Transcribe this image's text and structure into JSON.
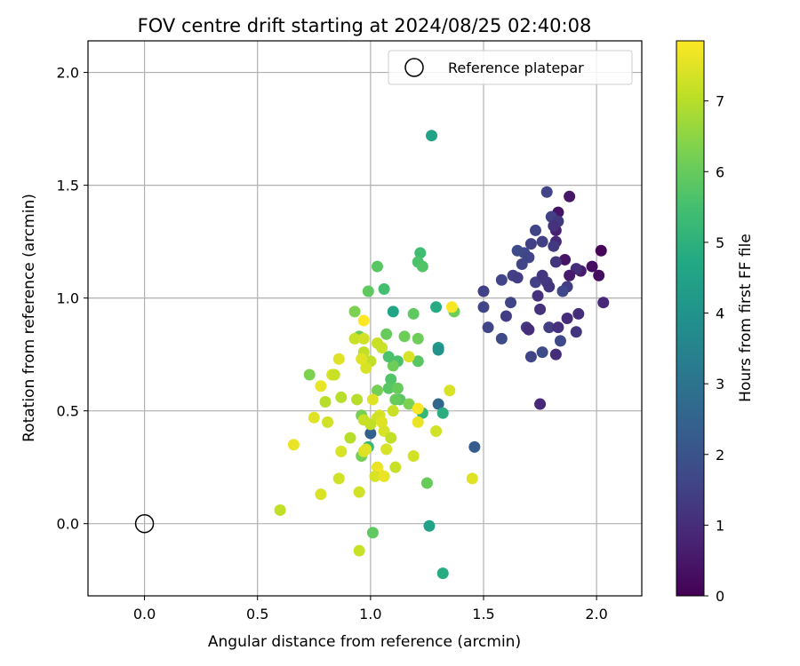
{
  "chart_data": {
    "type": "scatter",
    "title": "FOV centre drift starting at 2024/08/25 02:40:08",
    "xlabel": "Angular distance from reference (arcmin)",
    "ylabel": "Rotation from reference (arcmin)",
    "xlim": [
      -0.25,
      2.2
    ],
    "ylim": [
      -0.32,
      2.14
    ],
    "xticks": [
      "0.0",
      "0.5",
      "1.0",
      "1.5",
      "2.0"
    ],
    "yticks": [
      "0.0",
      "0.5",
      "1.0",
      "1.5",
      "2.0"
    ],
    "grid": true,
    "legend": {
      "position": "top-right",
      "entries": [
        "Reference platepar"
      ]
    },
    "reference_point": {
      "x": 0.0,
      "y": 0.0,
      "label": "Reference platepar"
    },
    "colorbar": {
      "label": "Hours from first FF file",
      "colormap": "viridis",
      "range": [
        0,
        7.85
      ],
      "ticks": [
        "0",
        "1",
        "2",
        "3",
        "4",
        "5",
        "6",
        "7"
      ]
    },
    "points": [
      [
        2.02,
        1.21,
        0.1
      ],
      [
        1.98,
        1.14,
        0.3
      ],
      [
        2.01,
        1.1,
        0.3
      ],
      [
        2.03,
        0.98,
        0.9
      ],
      [
        1.88,
        1.45,
        0.5
      ],
      [
        1.83,
        1.38,
        0.4
      ],
      [
        1.86,
        1.17,
        0.4
      ],
      [
        1.93,
        1.12,
        0.6
      ],
      [
        1.91,
        1.13,
        1.0
      ],
      [
        1.88,
        1.1,
        0.6
      ],
      [
        1.82,
        1.25,
        0.9
      ],
      [
        1.82,
        1.3,
        0.7
      ],
      [
        1.87,
        1.05,
        1.4
      ],
      [
        1.85,
        1.03,
        1.7
      ],
      [
        1.82,
        1.16,
        1.2
      ],
      [
        1.78,
        1.47,
        1.6
      ],
      [
        1.8,
        1.36,
        1.5
      ],
      [
        1.83,
        1.34,
        1.3
      ],
      [
        1.81,
        1.32,
        1.1
      ],
      [
        1.81,
        1.23,
        1.3
      ],
      [
        1.76,
        1.25,
        1.5
      ],
      [
        1.73,
        1.3,
        1.6
      ],
      [
        1.71,
        1.24,
        1.5
      ],
      [
        1.68,
        1.2,
        1.7
      ],
      [
        1.65,
        1.21,
        1.8
      ],
      [
        1.67,
        1.15,
        1.6
      ],
      [
        1.7,
        1.18,
        1.6
      ],
      [
        1.63,
        1.1,
        1.5
      ],
      [
        1.65,
        1.09,
        1.4
      ],
      [
        1.58,
        1.08,
        1.6
      ],
      [
        1.62,
        0.98,
        1.6
      ],
      [
        1.69,
        0.87,
        1.3
      ],
      [
        1.7,
        0.86,
        1.0
      ],
      [
        1.74,
        1.01,
        1.1
      ],
      [
        1.73,
        1.07,
        1.5
      ],
      [
        1.76,
        1.1,
        1.2
      ],
      [
        1.78,
        1.07,
        1.3
      ],
      [
        1.79,
        1.05,
        1.2
      ],
      [
        1.75,
        0.95,
        1.1
      ],
      [
        1.6,
        0.92,
        1.4
      ],
      [
        1.58,
        0.82,
        1.8
      ],
      [
        1.52,
        0.87,
        1.6
      ],
      [
        1.5,
        0.96,
        1.6
      ],
      [
        1.5,
        1.03,
        1.5
      ],
      [
        1.71,
        0.74,
        1.6
      ],
      [
        1.76,
        0.76,
        1.8
      ],
      [
        1.79,
        0.87,
        1.4
      ],
      [
        1.83,
        0.87,
        1.1
      ],
      [
        1.84,
        0.81,
        1.7
      ],
      [
        1.82,
        0.75,
        1.0
      ],
      [
        1.75,
        0.53,
        0.9
      ],
      [
        1.87,
        0.91,
        1.0
      ],
      [
        1.92,
        0.93,
        1.0
      ],
      [
        1.91,
        0.85,
        1.2
      ],
      [
        1.46,
        0.34,
        2.3
      ],
      [
        1.3,
        0.53,
        2.6
      ],
      [
        1.0,
        0.4,
        2.4
      ],
      [
        1.27,
        1.72,
        4.5
      ],
      [
        1.22,
        1.2,
        5.4
      ],
      [
        1.21,
        1.16,
        5.6
      ],
      [
        1.23,
        1.14,
        5.7
      ],
      [
        1.03,
        1.14,
        5.8
      ],
      [
        1.06,
        1.04,
        5.5
      ],
      [
        0.99,
        1.03,
        5.9
      ],
      [
        1.1,
        0.94,
        4.6
      ],
      [
        1.29,
        0.96,
        4.8
      ],
      [
        1.37,
        0.94,
        6.1
      ],
      [
        1.19,
        0.93,
        5.9
      ],
      [
        0.93,
        0.94,
        6.3
      ],
      [
        0.95,
        0.83,
        6.0
      ],
      [
        1.07,
        0.84,
        6.0
      ],
      [
        1.15,
        0.83,
        6.1
      ],
      [
        1.21,
        0.82,
        6.1
      ],
      [
        1.3,
        0.78,
        4.3
      ],
      [
        1.3,
        0.77,
        4.0
      ],
      [
        1.21,
        0.72,
        5.8
      ],
      [
        1.12,
        0.72,
        5.6
      ],
      [
        1.1,
        0.7,
        6.1
      ],
      [
        1.08,
        0.74,
        5.6
      ],
      [
        1.09,
        0.64,
        5.7
      ],
      [
        1.08,
        0.6,
        5.8
      ],
      [
        1.12,
        0.6,
        6.0
      ],
      [
        1.03,
        0.59,
        6.2
      ],
      [
        1.13,
        0.55,
        5.8
      ],
      [
        1.11,
        0.55,
        6.0
      ],
      [
        1.17,
        0.53,
        6.3
      ],
      [
        1.23,
        0.49,
        5.2
      ],
      [
        1.32,
        0.49,
        4.9
      ],
      [
        0.73,
        0.66,
        6.3
      ],
      [
        0.96,
        0.48,
        6.2
      ],
      [
        0.99,
        0.34,
        5.2
      ],
      [
        0.96,
        0.3,
        6.2
      ],
      [
        1.25,
        0.18,
        6.0
      ],
      [
        1.26,
        -0.01,
        4.5
      ],
      [
        1.32,
        -0.22,
        4.8
      ],
      [
        1.01,
        -0.04,
        5.9
      ],
      [
        0.95,
        -0.12,
        7.2
      ],
      [
        1.19,
        0.3,
        7.3
      ],
      [
        1.17,
        0.74,
        7.4
      ],
      [
        0.93,
        0.82,
        7.2
      ],
      [
        0.97,
        0.82,
        7.3
      ],
      [
        1.03,
        0.8,
        7.2
      ],
      [
        1.05,
        0.78,
        7.2
      ],
      [
        0.97,
        0.76,
        7.1
      ],
      [
        1.0,
        0.72,
        7.1
      ],
      [
        0.98,
        0.69,
        7.4
      ],
      [
        0.96,
        0.73,
        7.5
      ],
      [
        0.83,
        0.66,
        7.4
      ],
      [
        0.78,
        0.61,
        7.6
      ],
      [
        0.8,
        0.54,
        7.0
      ],
      [
        0.87,
        0.56,
        7.0
      ],
      [
        0.94,
        0.55,
        7.0
      ],
      [
        1.01,
        0.55,
        7.5
      ],
      [
        1.1,
        0.5,
        7.2
      ],
      [
        1.04,
        0.48,
        7.4
      ],
      [
        1.03,
        0.47,
        7.3
      ],
      [
        1.05,
        0.45,
        7.5
      ],
      [
        1.0,
        0.44,
        7.1
      ],
      [
        0.97,
        0.46,
        7.2
      ],
      [
        0.91,
        0.38,
        7.0
      ],
      [
        1.06,
        0.41,
        7.4
      ],
      [
        1.09,
        0.38,
        7.1
      ],
      [
        1.21,
        0.51,
        7.8
      ],
      [
        1.21,
        0.45,
        7.6
      ],
      [
        1.29,
        0.41,
        7.3
      ],
      [
        1.35,
        0.59,
        7.4
      ],
      [
        1.36,
        0.96,
        7.8
      ],
      [
        0.84,
        0.66,
        7.2
      ],
      [
        0.75,
        0.47,
        7.5
      ],
      [
        0.81,
        0.45,
        7.3
      ],
      [
        0.86,
        0.73,
        7.5
      ],
      [
        0.66,
        0.35,
        7.6
      ],
      [
        0.87,
        0.32,
        7.4
      ],
      [
        0.97,
        0.32,
        7.4
      ],
      [
        0.98,
        0.33,
        7.5
      ],
      [
        1.07,
        0.33,
        7.4
      ],
      [
        1.11,
        0.25,
        7.2
      ],
      [
        1.03,
        0.25,
        7.6
      ],
      [
        1.04,
        0.22,
        7.7
      ],
      [
        1.02,
        0.21,
        7.4
      ],
      [
        1.06,
        0.21,
        7.6
      ],
      [
        0.86,
        0.2,
        7.3
      ],
      [
        0.95,
        0.14,
        7.3
      ],
      [
        0.78,
        0.13,
        7.4
      ],
      [
        0.6,
        0.06,
        7.1
      ],
      [
        1.45,
        0.2,
        7.5
      ],
      [
        0.97,
        0.9,
        7.9
      ]
    ]
  }
}
